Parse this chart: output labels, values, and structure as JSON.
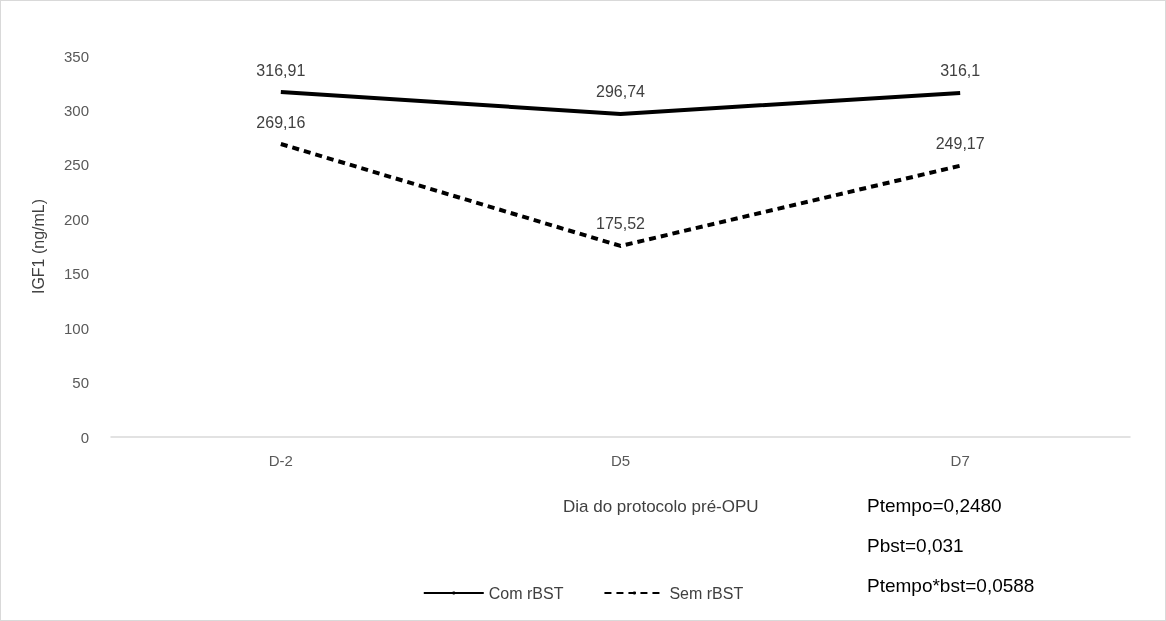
{
  "chart_data": {
    "type": "line",
    "xlabel": "Dia do protocolo pré-OPU",
    "ylabel": "IGF1 (ng/mL)",
    "categories": [
      "D-2",
      "D5",
      "D7"
    ],
    "series": [
      {
        "name": "Com rBST",
        "color": "#000000",
        "line_style": "solid",
        "values": [
          316.91,
          296.74,
          316.1
        ],
        "value_labels": [
          "316,91",
          "296,74",
          "316,1"
        ]
      },
      {
        "name": "Sem rBST",
        "color": "#000000",
        "line_style": "dashed",
        "values": [
          269.16,
          175.52,
          249.17
        ],
        "value_labels": [
          "269,16",
          "175,52",
          "249,17"
        ]
      }
    ],
    "ylim": [
      0,
      350
    ],
    "yticks": [
      0,
      50,
      100,
      150,
      200,
      250,
      300,
      350
    ],
    "grid": false,
    "legend": "bottom",
    "marker": "none",
    "annotations": [
      "Ptempo=0,2480",
      "Pbst=0,031",
      "Ptempo*bst=0,0588"
    ]
  }
}
